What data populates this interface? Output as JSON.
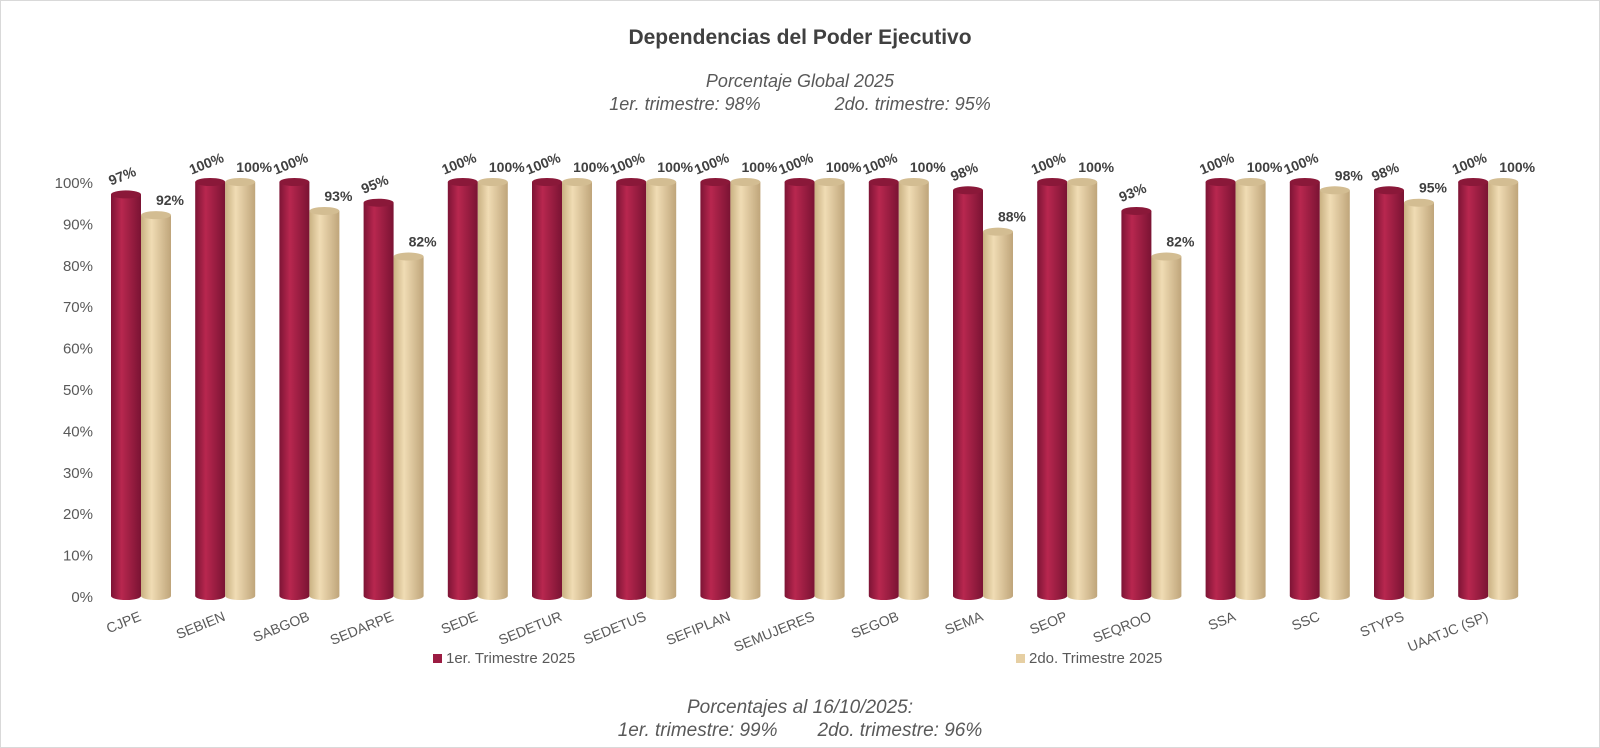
{
  "chart_data": {
    "type": "bar",
    "title": "Dependencias del Poder Ejecutivo",
    "subtitle_line1": "Porcentaje Global  2025",
    "subtitle_q1": "1er. trimestre: 98%",
    "subtitle_q2": "2do. trimestre: 95%",
    "footer_line1": "Porcentajes al 16/10/2025:",
    "footer_q1": "1er. trimestre: 99%",
    "footer_q2": "2do. trimestre: 96%",
    "categories": [
      "CJPE",
      "SEBIEN",
      "SABGOB",
      "SEDARPE",
      "SEDE",
      "SEDETUR",
      "SEDETUS",
      "SEFIPLAN",
      "SEMUJERES",
      "SEGOB",
      "SEMA",
      "SEOP",
      "SEQROO",
      "SSA",
      "SSC",
      "STYPS",
      "UAATJC (SP)"
    ],
    "series": [
      {
        "name": "1er. Trimestre 2025",
        "color": "#9b1b42",
        "values": [
          97,
          100,
          100,
          95,
          100,
          100,
          100,
          100,
          100,
          100,
          98,
          100,
          93,
          100,
          100,
          98,
          100
        ]
      },
      {
        "name": "2do. Trimestre 2025",
        "color": "#e6cfa3",
        "values": [
          92,
          100,
          93,
          82,
          100,
          100,
          100,
          100,
          100,
          100,
          88,
          100,
          82,
          100,
          98,
          95,
          100
        ]
      }
    ],
    "y_ticks": [
      "0%",
      "10%",
      "20%",
      "30%",
      "40%",
      "50%",
      "60%",
      "70%",
      "80%",
      "90%",
      "100%"
    ],
    "ylim": [
      0,
      100
    ],
    "grid": false,
    "legend_position": "bottom"
  }
}
